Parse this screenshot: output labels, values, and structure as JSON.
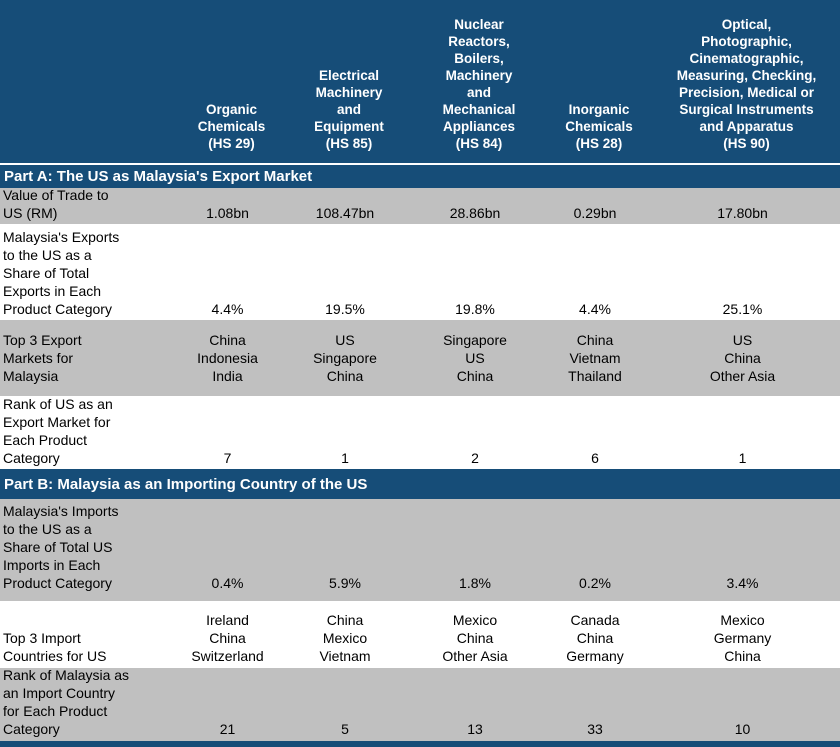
{
  "colors": {
    "header_blue": "#164d78",
    "row_gray": "#c0c0c0",
    "header_text": "#ffffff",
    "body_text": "#000000"
  },
  "chart_data": {
    "type": "table",
    "title": "",
    "column_headers": [
      "Organic Chemicals (HS 29)",
      "Electrical Machinery and Equipment (HS 85)",
      "Nuclear Reactors, Boilers, Machinery and Mechanical Appliances (HS 84)",
      "Inorganic Chemicals (HS 28)",
      "Optical, Photographic, Cinematographic, Measuring, Checking, Precision, Medical or Surgical Instruments and Apparatus (HS 90)"
    ],
    "sections": [
      {
        "title": "Part A: The US as Malaysia's Export Market",
        "rows": [
          {
            "label": "Value of Trade to US (RM)",
            "values": [
              "1.08bn",
              "108.47bn",
              "28.86bn",
              "0.29bn",
              "17.80bn"
            ]
          },
          {
            "label": "Malaysia's Exports to the US as a Share of Total Exports in Each Product Category",
            "values": [
              "4.4%",
              "19.5%",
              "19.8%",
              "4.4%",
              "25.1%"
            ]
          },
          {
            "label": "Top 3 Export Markets for Malaysia",
            "values": [
              "China, Indonesia, India",
              "US, Singapore, China",
              "Singapore, US, China",
              "China, Vietnam, Thailand",
              "US, China, Other Asia"
            ]
          },
          {
            "label": "Rank of US as an Export Market for Each Product Category",
            "values": [
              7,
              1,
              2,
              6,
              1
            ]
          }
        ]
      },
      {
        "title": "Part B: Malaysia as an Importing Country of the US",
        "rows": [
          {
            "label": "Malaysia's Imports to the US as a Share of Total US Imports in Each Product Category",
            "values": [
              "0.4%",
              "5.9%",
              "1.8%",
              "0.2%",
              "3.4%"
            ]
          },
          {
            "label": "Top 3 Import Countries for US",
            "values": [
              "Ireland, China, Switzerland",
              "China, Mexico, Vietnam",
              "Mexico, China, Other Asia",
              "Canada, China, Germany",
              "Mexico, Germany, China"
            ]
          },
          {
            "label": "Rank of Malaysia as an Import Country for Each Product Category",
            "values": [
              21,
              5,
              13,
              33,
              10
            ]
          }
        ]
      }
    ]
  },
  "table": {
    "header": [
      [
        "Organic",
        "Chemicals",
        "(HS 29)"
      ],
      [
        "Electrical",
        "Machinery",
        "and",
        "Equipment",
        "(HS 85)"
      ],
      [
        "Nuclear",
        "Reactors,",
        "Boilers,",
        "Machinery",
        "and",
        "Mechanical",
        "Appliances",
        "(HS 84)"
      ],
      [
        "Inorganic",
        "Chemicals",
        "(HS 28)"
      ],
      [
        "Optical,",
        "Photographic,",
        "Cinematographic,",
        "Measuring, Checking,",
        "Precision, Medical or",
        "Surgical Instruments",
        "and Apparatus",
        "(HS 90)"
      ]
    ],
    "part_a": {
      "title": "Part A: The US as Malaysia's Export Market",
      "rows": [
        {
          "label": [
            "Value of Trade to",
            "US (RM)"
          ],
          "values": [
            "1.08bn",
            "108.47bn",
            "28.86bn",
            "0.29bn",
            "17.80bn"
          ]
        },
        {
          "label": [
            "Malaysia's Exports",
            "to the US as a",
            "Share of Total",
            "Exports in Each",
            "Product Category"
          ],
          "values": [
            "4.4%",
            "19.5%",
            "19.8%",
            "4.4%",
            "25.1%"
          ]
        },
        {
          "label": [
            "Top 3 Export",
            "Markets for",
            "Malaysia"
          ],
          "values": [
            [
              "China",
              "Indonesia",
              "India"
            ],
            [
              "US",
              "Singapore",
              "China"
            ],
            [
              "Singapore",
              "US",
              "China"
            ],
            [
              "China",
              "Vietnam",
              "Thailand"
            ],
            [
              "US",
              "China",
              "Other Asia"
            ]
          ]
        },
        {
          "label": [
            "Rank of US as an",
            "Export Market for",
            "Each Product",
            "Category"
          ],
          "values": [
            "7",
            "1",
            "2",
            "6",
            "1"
          ]
        }
      ]
    },
    "part_b": {
      "title": "Part B: Malaysia as an Importing Country of the US",
      "rows": [
        {
          "label": [
            "Malaysia's Imports",
            "to the US as a",
            "Share of Total US",
            "Imports in Each",
            "Product Category"
          ],
          "values": [
            "0.4%",
            "5.9%",
            "1.8%",
            "0.2%",
            "3.4%"
          ]
        },
        {
          "label": [
            "Top 3 Import",
            "Countries for US"
          ],
          "values": [
            [
              "Ireland",
              "China",
              "Switzerland"
            ],
            [
              "China",
              "Mexico",
              "Vietnam"
            ],
            [
              "Mexico",
              "China",
              "Other Asia"
            ],
            [
              "Canada",
              "China",
              "Germany"
            ],
            [
              "Mexico",
              "Germany",
              "China"
            ]
          ]
        },
        {
          "label": [
            "Rank of Malaysia as",
            "an Import Country",
            "for Each Product",
            "Category"
          ],
          "values": [
            "21",
            "5",
            "13",
            "33",
            "10"
          ]
        }
      ]
    }
  }
}
